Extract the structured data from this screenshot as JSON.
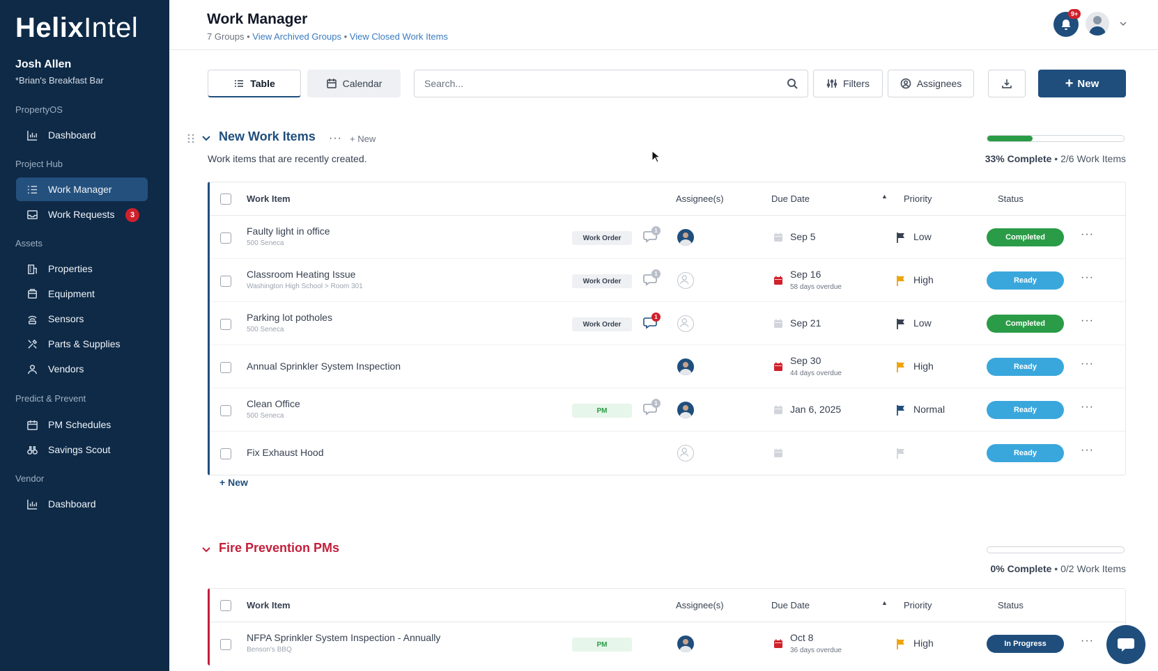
{
  "sidebar": {
    "logo_bold": "Helix",
    "logo_light": "Intel",
    "user_name": "Josh Allen",
    "user_sub": "*Brian's Breakfast Bar",
    "sections": [
      {
        "label": "PropertyOS"
      },
      {
        "label": "Project Hub"
      },
      {
        "label": "Assets"
      },
      {
        "label": "Predict & Prevent"
      },
      {
        "label": "Vendor"
      }
    ],
    "items": [
      {
        "label": "Dashboard",
        "icon": "bar-chart-icon"
      },
      {
        "label": "Work Manager",
        "icon": "list-icon"
      },
      {
        "label": "Work Requests",
        "icon": "inbox-icon",
        "badge": "3"
      },
      {
        "label": "Properties",
        "icon": "building-icon"
      },
      {
        "label": "Equipment",
        "icon": "equipment-icon"
      },
      {
        "label": "Sensors",
        "icon": "sensor-icon"
      },
      {
        "label": "Parts & Supplies",
        "icon": "tools-icon"
      },
      {
        "label": "Vendors",
        "icon": "person-icon"
      },
      {
        "label": "PM Schedules",
        "icon": "calendar-icon"
      },
      {
        "label": "Savings Scout",
        "icon": "binoculars-icon"
      },
      {
        "label": "Dashboard",
        "icon": "bar-chart-icon"
      }
    ]
  },
  "header": {
    "title": "Work Manager",
    "groups_count": "7 Groups",
    "sep": "•",
    "link_archived": "View Archived Groups",
    "link_closed": "View Closed Work Items",
    "notif_badge": "9+"
  },
  "toolbar": {
    "tab_table": "Table",
    "tab_calendar": "Calendar",
    "search_placeholder": "Search...",
    "filters": "Filters",
    "assignees": "Assignees",
    "new": "New"
  },
  "columns": {
    "work_item": "Work Item",
    "assignees": "Assignee(s)",
    "due_date": "Due Date",
    "priority": "Priority",
    "status": "Status"
  },
  "group1": {
    "title": "New Work Items",
    "new_label": "New",
    "description": "Work items that are recently created.",
    "progress_value": 33,
    "progress_pct": "33% Complete",
    "progress_count": "2/6 Work Items",
    "rows": [
      {
        "title": "Faulty light in office",
        "sub": "500 Seneca",
        "tag": "Work Order",
        "comments": "1",
        "assignee": true,
        "due": "Sep 5",
        "overdue": "",
        "due_red": false,
        "priority": "Low",
        "flag_color": "#374151",
        "status": "Completed"
      },
      {
        "title": "Classroom Heating Issue",
        "sub": "Washington High School > Room 301",
        "tag": "Work Order",
        "comments": "1",
        "assignee": false,
        "due": "Sep 16",
        "overdue": "58 days overdue",
        "due_red": true,
        "priority": "High",
        "flag_color": "#f0a30a",
        "status": "Ready"
      },
      {
        "title": "Parking lot potholes",
        "sub": "500 Seneca",
        "tag": "Work Order",
        "comments": "1",
        "comments_unread": true,
        "assignee": false,
        "due": "Sep 21",
        "overdue": "",
        "due_red": false,
        "priority": "Low",
        "flag_color": "#374151",
        "status": "Completed"
      },
      {
        "title": "Annual Sprinkler System Inspection",
        "sub": "",
        "tag": "",
        "comments": "",
        "assignee": true,
        "due": "Sep 30",
        "overdue": "44 days overdue",
        "due_red": true,
        "priority": "High",
        "flag_color": "#f0a30a",
        "status": "Ready"
      },
      {
        "title": "Clean Office",
        "sub": "500 Seneca",
        "tag": "PM",
        "comments": "1",
        "assignee": true,
        "due": "Jan 6, 2025",
        "overdue": "",
        "due_red": false,
        "priority": "Normal",
        "flag_color": "#1f4e7d",
        "status": "Ready"
      },
      {
        "title": "Fix Exhaust Hood",
        "sub": "",
        "tag": "",
        "comments": "",
        "assignee": false,
        "due": "",
        "overdue": "",
        "due_red": false,
        "priority": "",
        "flag_color": "#d1d5db",
        "status": "Ready"
      }
    ]
  },
  "add_new": "New",
  "group2": {
    "title": "Fire Prevention PMs",
    "progress_value": 0,
    "progress_pct": "0% Complete",
    "progress_count": "0/2 Work Items",
    "rows": [
      {
        "title": "NFPA Sprinkler System Inspection - Annually",
        "sub": "Benson's BBQ",
        "tag": "PM",
        "comments": "",
        "assignee": true,
        "due": "Oct 8",
        "overdue": "36 days overdue",
        "due_red": true,
        "priority": "High",
        "flag_color": "#f0a30a",
        "status": "In Progress"
      }
    ]
  },
  "colors": {
    "navy": "#0e2a47",
    "accent": "#1f4e7d",
    "completed": "#2a9b46",
    "ready": "#3aa7dc",
    "danger": "#d0202b",
    "group2": "#c41e3a"
  }
}
